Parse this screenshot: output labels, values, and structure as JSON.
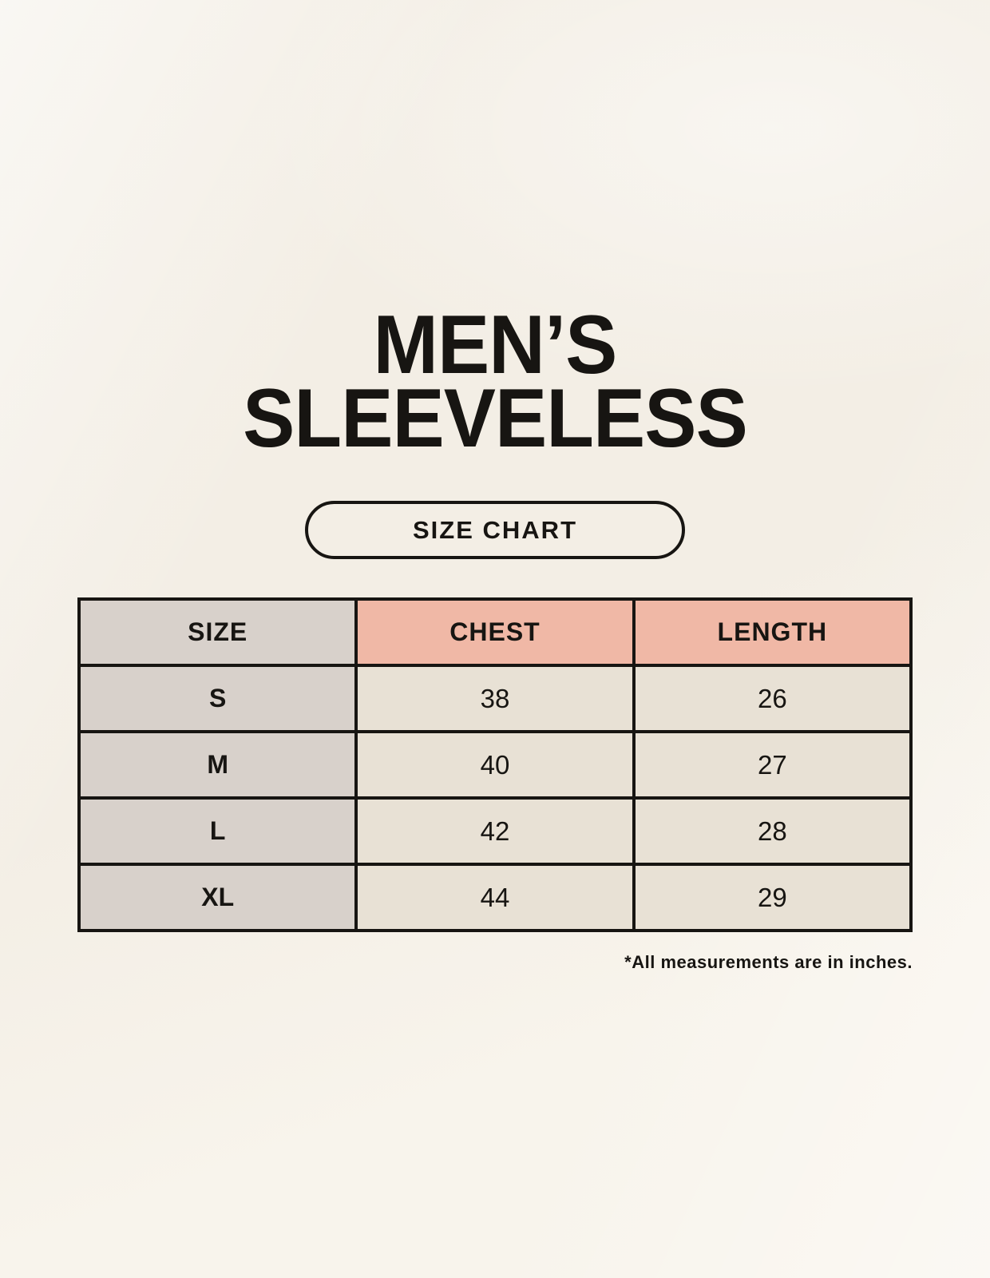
{
  "title": {
    "line1": "MEN’S",
    "line2": "SLEEVELESS"
  },
  "size_chart_button": {
    "label": "SIZE CHART"
  },
  "chart_data": {
    "type": "table",
    "title": "MEN’S SLEEVELESS",
    "columns": [
      "SIZE",
      "CHEST",
      "LENGTH"
    ],
    "rows": [
      [
        "S",
        38,
        26
      ],
      [
        "M",
        40,
        27
      ],
      [
        "L",
        42,
        28
      ],
      [
        "XL",
        44,
        29
      ]
    ],
    "note": "*All measurements are in inches.",
    "units": "inches"
  },
  "colors": {
    "background": "#f8f4ec",
    "table-border": "#171512",
    "header-size-bg": "#d8d1cb",
    "header-accent-bg": "#f0b8a6",
    "cell-size-bg": "#d8d1cb",
    "cell-value-bg": "#e8e1d5",
    "text": "#171512"
  }
}
